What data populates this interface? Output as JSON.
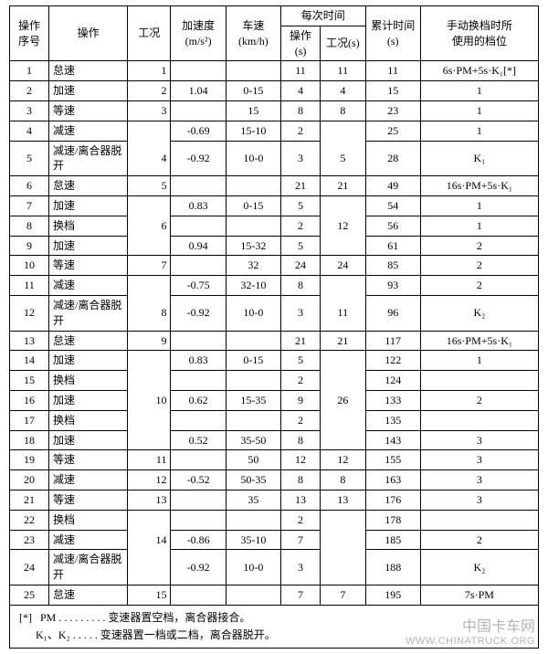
{
  "styling": {
    "font_family": "SimSun",
    "font_size_pt": 12,
    "text_color": "#000000",
    "background_color": "#ffffff",
    "border_color": "#000000",
    "watermark_color": "rgba(0,0,0,0.30)"
  },
  "header": {
    "c1": "操作\n序号",
    "c2": "操作",
    "c3": "工况",
    "c4": "加速度\n(m/s²)",
    "c5": "车速\n(km/h)",
    "c6_group": "每次时间",
    "c6": "操作\n(s)",
    "c7": "工况(s)",
    "c8": "累计时间\n(s)",
    "c9": "手动换档时所\n使用的档位"
  },
  "rows": [
    {
      "n": "1",
      "op": "怠速",
      "cond": "1",
      "a": "",
      "v": "",
      "t": "11",
      "tc": "11",
      "cum": "11",
      "gear": "6s·PM+5s·K₁[*]"
    },
    {
      "n": "2",
      "op": "加速",
      "cond": "2",
      "a": "1.04",
      "v": "0-15",
      "t": "4",
      "tc": "4",
      "cum": "15",
      "gear": "1"
    },
    {
      "n": "3",
      "op": "等速",
      "cond": "3",
      "a": "",
      "v": "15",
      "t": "8",
      "tc": "8",
      "cum": "23",
      "gear": "1"
    },
    {
      "n": "4",
      "op": "减速",
      "cond": "",
      "a": "-0.69",
      "v": "15-10",
      "t": "2",
      "tc": "",
      "cum": "25",
      "gear": "1"
    },
    {
      "n": "5",
      "op": "减速/离合器脱开",
      "cond": "4",
      "a": "-0.92",
      "v": "10-0",
      "t": "3",
      "tc": "5",
      "cum": "28",
      "gear": "K₁"
    },
    {
      "n": "6",
      "op": "怠速",
      "cond": "5",
      "a": "",
      "v": "",
      "t": "21",
      "tc": "21",
      "cum": "49",
      "gear": "16s·PM+5s·K₁"
    },
    {
      "n": "7",
      "op": "加速",
      "cond": "",
      "a": "0.83",
      "v": "0-15",
      "t": "5",
      "tc": "",
      "cum": "54",
      "gear": "1"
    },
    {
      "n": "8",
      "op": "换档",
      "cond": "6",
      "a": "",
      "v": "",
      "t": "2",
      "tc": "12",
      "cum": "56",
      "gear": "1"
    },
    {
      "n": "9",
      "op": "加速",
      "cond": "",
      "a": "0.94",
      "v": "15-32",
      "t": "5",
      "tc": "",
      "cum": "61",
      "gear": "2"
    },
    {
      "n": "10",
      "op": "等速",
      "cond": "7",
      "a": "",
      "v": "32",
      "t": "24",
      "tc": "24",
      "cum": "85",
      "gear": "2"
    },
    {
      "n": "11",
      "op": "减速",
      "cond": "",
      "a": "-0.75",
      "v": "32-10",
      "t": "8",
      "tc": "",
      "cum": "93",
      "gear": "2"
    },
    {
      "n": "12",
      "op": "减速/离合器脱开",
      "cond": "8",
      "a": "-0.92",
      "v": "10-0",
      "t": "3",
      "tc": "11",
      "cum": "96",
      "gear": "K₂"
    },
    {
      "n": "13",
      "op": "怠速",
      "cond": "9",
      "a": "",
      "v": "",
      "t": "21",
      "tc": "21",
      "cum": "117",
      "gear": "16s·PM+5s·K₁"
    },
    {
      "n": "14",
      "op": "加速",
      "cond": "",
      "a": "0.83",
      "v": "0-15",
      "t": "5",
      "tc": "",
      "cum": "122",
      "gear": "1"
    },
    {
      "n": "15",
      "op": "换档",
      "cond": "",
      "a": "",
      "v": "",
      "t": "2",
      "tc": "",
      "cum": "124",
      "gear": ""
    },
    {
      "n": "16",
      "op": "加速",
      "cond": "10",
      "a": "0.62",
      "v": "15-35",
      "t": "9",
      "tc": "26",
      "cum": "133",
      "gear": "2"
    },
    {
      "n": "17",
      "op": "换档",
      "cond": "",
      "a": "",
      "v": "",
      "t": "2",
      "tc": "",
      "cum": "135",
      "gear": ""
    },
    {
      "n": "18",
      "op": "加速",
      "cond": "",
      "a": "0.52",
      "v": "35-50",
      "t": "8",
      "tc": "",
      "cum": "143",
      "gear": "3"
    },
    {
      "n": "19",
      "op": "等速",
      "cond": "11",
      "a": "",
      "v": "50",
      "t": "12",
      "tc": "12",
      "cum": "155",
      "gear": "3"
    },
    {
      "n": "20",
      "op": "减速",
      "cond": "12",
      "a": "-0.52",
      "v": "50-35",
      "t": "8",
      "tc": "8",
      "cum": "163",
      "gear": "3"
    },
    {
      "n": "21",
      "op": "等速",
      "cond": "13",
      "a": "",
      "v": "35",
      "t": "13",
      "tc": "13",
      "cum": "176",
      "gear": "3"
    },
    {
      "n": "22",
      "op": "换档",
      "cond": "",
      "a": "",
      "v": "",
      "t": "2",
      "tc": "",
      "cum": "178",
      "gear": ""
    },
    {
      "n": "23",
      "op": "减速",
      "cond": "14",
      "a": "-0.86",
      "v": "35-10",
      "t": "7",
      "tc": "",
      "cum": "185",
      "gear": "2"
    },
    {
      "n": "24",
      "op": "减速/离合器脱开",
      "cond": "",
      "a": "-0.92",
      "v": "10-0",
      "t": "3",
      "tc": "",
      "cum": "188",
      "gear": "K₂"
    },
    {
      "n": "25",
      "op": "怠速",
      "cond": "15",
      "a": "",
      "v": "",
      "t": "7",
      "tc": "7",
      "cum": "195",
      "gear": "7s·PM"
    }
  ],
  "groups": {
    "cond": [
      [
        3,
        4
      ],
      [
        6,
        8
      ],
      [
        10,
        11
      ],
      [
        13,
        17
      ],
      [
        21,
        23
      ]
    ],
    "tc": [
      [
        3,
        4
      ],
      [
        6,
        8
      ],
      [
        10,
        11
      ],
      [
        13,
        17
      ],
      [
        21,
        23
      ]
    ]
  },
  "footnote": {
    "mark": "[*]",
    "line1": "PM . . . . . . . . . 变速器置空档，离合器接合。",
    "line2": "K₁、K₂ . . . . . 变速器置一档或二档，离合器脱开。"
  },
  "watermark": {
    "name": "中国卡车网",
    "url": "WWW.CHINATRUCK.ORG"
  }
}
